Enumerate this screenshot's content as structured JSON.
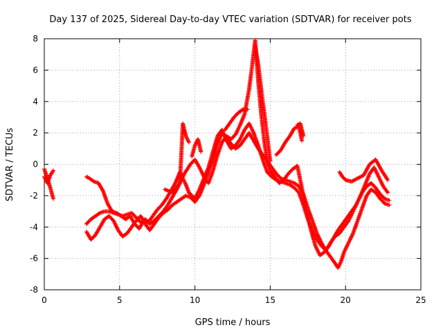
{
  "chart_data": {
    "type": "scatter",
    "title": "Day 137 of 2025, Sidereal Day-to-day VTEC variation (SDTVAR) for receiver pots",
    "xlabel": "GPS time / hours",
    "ylabel": "SDTVAR / TECUs",
    "xlim": [
      0,
      25
    ],
    "ylim": [
      -8,
      8
    ],
    "x_ticks": [
      "0",
      "5",
      "10",
      "15",
      "20",
      "25"
    ],
    "y_ticks": [
      "-8",
      "-6",
      "-4",
      "-2",
      "0",
      "2",
      "4",
      "6",
      "8"
    ],
    "grid": true,
    "marker": "+",
    "series_color": "#ff0000",
    "series": [
      {
        "x": [
          0,
          0.2,
          0.4,
          0.6
        ],
        "y": [
          -0.3,
          -0.9,
          -1.5,
          -2.2
        ]
      },
      {
        "x": [
          0,
          0.2,
          0.4,
          0.6
        ],
        "y": [
          -0.8,
          -1.2,
          -0.7,
          -0.4
        ]
      },
      {
        "x": [
          2.8,
          3.0,
          3.3,
          3.6,
          3.9,
          4.2,
          4.5,
          4.8,
          5.1,
          5.4,
          5.7,
          6.0,
          6.3,
          6.6,
          6.9,
          7.2,
          7.5,
          7.8,
          8.1,
          8.4,
          8.7,
          9.0,
          9.2,
          9.4,
          9.6,
          9.8,
          10.0,
          10.3,
          10.6,
          10.9,
          11.2,
          11.5,
          11.8,
          12.1,
          12.4,
          12.7,
          13.0,
          13.3,
          13.6,
          13.9,
          14.2,
          14.5,
          14.8,
          15.1,
          15.4,
          15.7,
          16.0,
          16.3,
          16.6,
          16.9,
          17.2,
          17.5,
          17.8,
          18.1,
          18.4,
          18.7,
          19.0,
          19.3,
          19.6,
          19.9,
          20.2,
          20.5,
          20.8,
          21.1,
          21.4,
          21.7,
          22.0,
          22.3,
          22.6,
          22.9
        ],
        "y": [
          -0.8,
          -0.9,
          -1.1,
          -1.2,
          -1.7,
          -2.5,
          -3.0,
          -3.1,
          -3.3,
          -3.5,
          -3.3,
          -3.8,
          -4.1,
          -3.6,
          -3.7,
          -3.3,
          -2.9,
          -2.6,
          -2.2,
          -1.7,
          -1.2,
          -0.5,
          -0.9,
          -1.3,
          -1.8,
          -2.0,
          -2.2,
          -1.6,
          -0.9,
          -0.2,
          0.8,
          1.8,
          2.2,
          1.5,
          1.0,
          1.2,
          1.6,
          2.2,
          2.6,
          2.0,
          1.2,
          0.3,
          -0.5,
          -0.8,
          -1.0,
          -1.1,
          -1.2,
          -1.3,
          -1.5,
          -1.8,
          -2.6,
          -3.5,
          -4.2,
          -4.8,
          -5.2,
          -5.5,
          -5.0,
          -4.6,
          -4.4,
          -4.0,
          -3.6,
          -3.0,
          -2.4,
          -1.8,
          -1.4,
          -1.2,
          -1.5,
          -1.9,
          -2.2,
          -2.3
        ]
      },
      {
        "x": [
          2.8,
          3.1,
          3.4,
          3.7,
          4.0,
          4.3,
          4.6,
          4.9,
          5.2,
          5.5,
          5.8,
          6.1,
          6.4,
          6.7,
          7.0,
          7.3,
          7.6,
          7.9,
          8.2,
          8.5,
          8.8,
          9.1,
          9.3,
          9.5,
          9.7,
          10.0,
          10.3,
          10.6,
          10.9,
          11.2,
          11.5,
          11.8,
          12.1,
          12.4,
          12.7,
          13.0,
          13.3,
          13.6,
          13.8,
          14.0,
          14.2,
          14.4,
          14.6,
          14.8,
          15.0,
          15.3,
          15.6,
          15.9,
          16.2,
          16.5,
          16.8,
          17.1,
          17.4,
          17.7,
          18.0,
          18.3,
          18.6,
          18.9,
          19.2,
          19.5,
          19.8,
          20.1,
          20.4,
          20.7,
          21.0,
          21.3,
          21.6,
          21.9,
          22.2,
          22.5,
          22.8
        ],
        "y": [
          -3.8,
          -3.5,
          -3.3,
          -3.1,
          -3.0,
          -3.0,
          -3.1,
          -3.2,
          -3.3,
          -3.2,
          -3.1,
          -3.4,
          -3.7,
          -3.5,
          -3.8,
          -3.6,
          -3.3,
          -3.0,
          -2.6,
          -2.1,
          -1.6,
          -1.0,
          -0.6,
          -0.3,
          0.0,
          0.3,
          -0.2,
          -0.8,
          -1.2,
          -0.4,
          0.6,
          1.4,
          1.8,
          1.6,
          1.9,
          2.5,
          3.2,
          4.8,
          6.3,
          7.9,
          5.3,
          3.2,
          1.5,
          0.2,
          -0.4,
          -0.8,
          -1.2,
          -1.0,
          -0.6,
          -0.3,
          -0.1,
          -1.5,
          -3.0,
          -4.2,
          -5.2,
          -5.8,
          -5.6,
          -5.2,
          -4.7,
          -4.2,
          -3.8,
          -3.4,
          -3.0,
          -2.6,
          -2.0,
          -1.3,
          -0.6,
          -0.2,
          -0.8,
          -1.4,
          -1.8
        ]
      },
      {
        "x": [
          2.8,
          3.1,
          3.4,
          3.7,
          4.0,
          4.3,
          4.6,
          4.9,
          5.2,
          5.5,
          5.8,
          6.1,
          6.4,
          6.7,
          7.0,
          7.3,
          7.6,
          7.9,
          8.2,
          8.5,
          8.8,
          9.1,
          9.4,
          9.7,
          10.0,
          10.3,
          10.6,
          10.9,
          11.2,
          11.5,
          11.8,
          12.1,
          12.4,
          12.7,
          13.0,
          13.3,
          13.6,
          13.9,
          14.2,
          14.5,
          14.8,
          15.1,
          15.4,
          15.7,
          16.0,
          16.3,
          16.6,
          16.9,
          17.2,
          17.5,
          17.8,
          18.1,
          18.4,
          18.7,
          19.0,
          19.3,
          19.5,
          19.7,
          19.9,
          20.2,
          20.5,
          20.8,
          21.1,
          21.4,
          21.7,
          22.0,
          22.3,
          22.6,
          22.9
        ],
        "y": [
          -4.3,
          -4.8,
          -4.5,
          -4.0,
          -3.5,
          -3.3,
          -3.6,
          -4.2,
          -4.6,
          -4.4,
          -4.0,
          -3.6,
          -3.3,
          -3.8,
          -4.2,
          -3.8,
          -3.4,
          -3.1,
          -2.9,
          -2.6,
          -2.4,
          -2.2,
          -2.0,
          -2.1,
          -2.4,
          -2.0,
          -1.3,
          -0.5,
          0.3,
          1.3,
          2.0,
          1.7,
          1.3,
          1.0,
          1.2,
          1.6,
          2.0,
          1.5,
          1.0,
          0.6,
          0.2,
          -0.2,
          -0.6,
          -0.9,
          -1.0,
          -1.1,
          -1.2,
          -1.4,
          -1.9,
          -2.8,
          -3.6,
          -4.4,
          -5.0,
          -5.5,
          -5.9,
          -6.3,
          -6.6,
          -6.2,
          -5.6,
          -5.0,
          -4.4,
          -3.6,
          -2.8,
          -2.0,
          -1.6,
          -1.8,
          -2.2,
          -2.5,
          -2.6
        ]
      },
      {
        "x": [
          8.0,
          8.5,
          9.0,
          9.2,
          9.4,
          9.6
        ],
        "y": [
          -1.6,
          -1.8,
          -1.2,
          2.6,
          1.8,
          1.4
        ]
      },
      {
        "x": [
          9.8,
          10.0,
          10.2,
          10.4
        ],
        "y": [
          0.5,
          1.2,
          1.6,
          0.8
        ]
      },
      {
        "x": [
          12.0,
          12.3,
          12.6,
          12.9,
          13.2,
          13.5
        ],
        "y": [
          2.2,
          2.6,
          3.0,
          3.3,
          3.5,
          3.5
        ]
      },
      {
        "x": [
          14.0,
          14.2,
          14.4,
          14.6,
          14.8,
          15.0
        ],
        "y": [
          7.5,
          6.4,
          4.8,
          3.3,
          1.8,
          0.2
        ]
      },
      {
        "x": [
          15.4,
          15.7,
          16.0,
          16.3,
          16.6,
          16.9,
          17.1
        ],
        "y": [
          0.6,
          0.9,
          1.4,
          1.8,
          2.3,
          2.4,
          1.5
        ]
      },
      {
        "x": [
          16.8,
          17.0,
          17.2
        ],
        "y": [
          2.5,
          2.6,
          1.8
        ]
      },
      {
        "x": [
          19.6,
          19.8,
          20.0,
          20.4,
          20.8,
          21.2,
          21.6,
          22.0,
          22.4,
          22.8
        ],
        "y": [
          -0.5,
          -0.8,
          -1.0,
          -1.1,
          -0.9,
          -0.7,
          0.0,
          0.3,
          -0.4,
          -1.0
        ]
      }
    ]
  }
}
